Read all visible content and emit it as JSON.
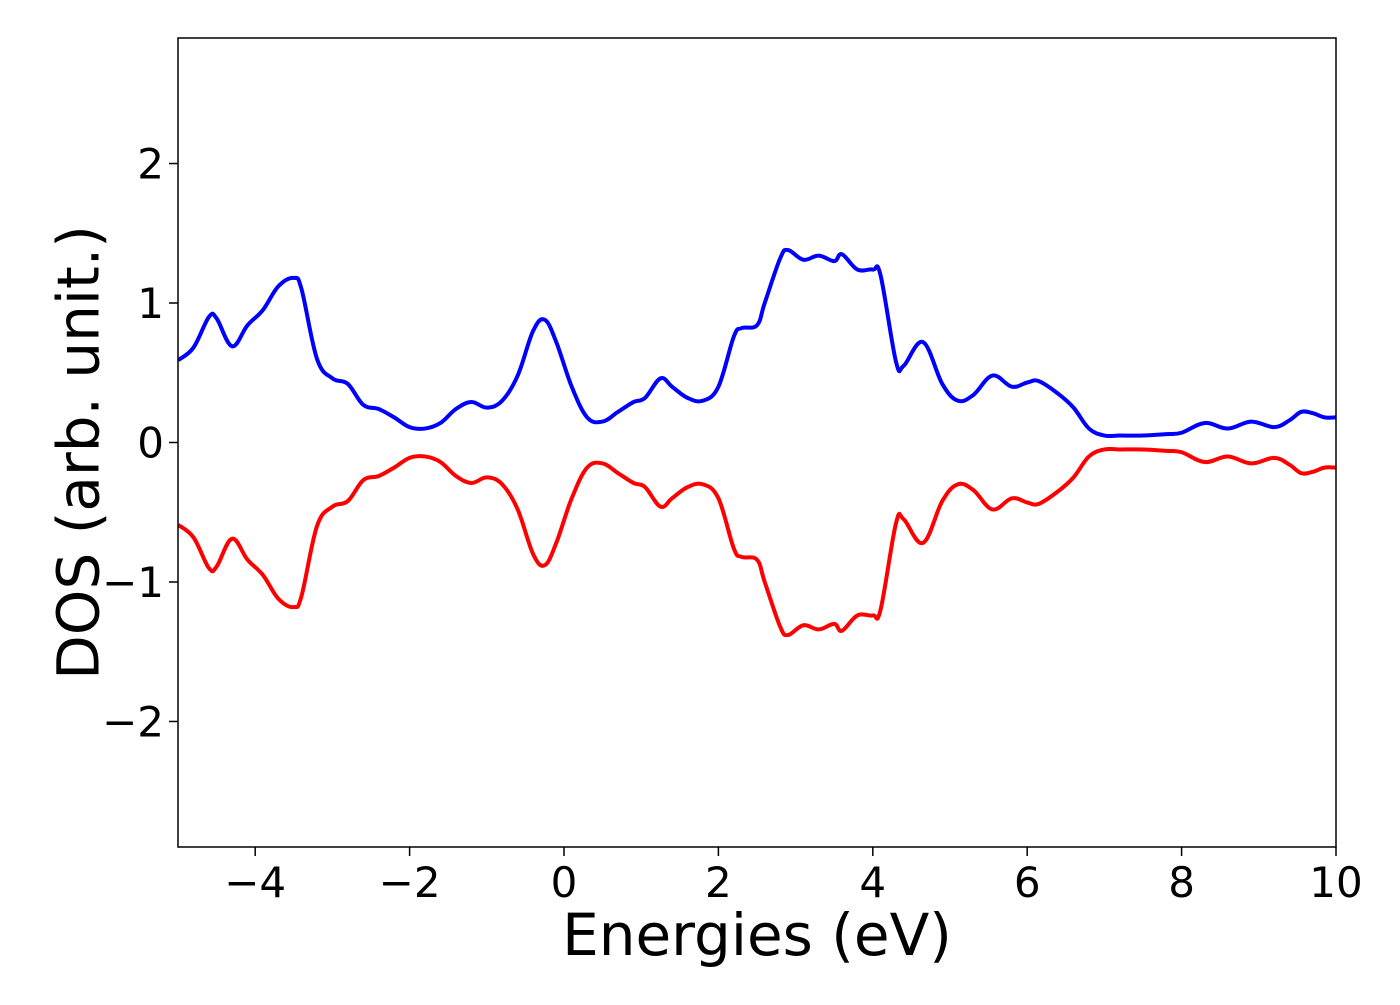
{
  "chart_data": {
    "type": "line",
    "title": "",
    "xlabel": "Energies (eV)",
    "ylabel": "DOS (arb. unit.)",
    "xlim": [
      -5,
      10
    ],
    "ylim": [
      -2.9,
      2.9
    ],
    "xticks": [
      -4,
      -2,
      0,
      2,
      4,
      6,
      8,
      10
    ],
    "xtick_labels": [
      "−4",
      "−2",
      "0",
      "2",
      "4",
      "6",
      "8",
      "10"
    ],
    "yticks": [
      -2,
      -1,
      0,
      1,
      2
    ],
    "ytick_labels": [
      "−2",
      "−1",
      "0",
      "1",
      "2"
    ],
    "grid": false,
    "legend": "none",
    "series": [
      {
        "color": "#0000ff",
        "x": [
          -5.0,
          -4.8,
          -4.6,
          -4.5,
          -4.3,
          -4.1,
          -3.9,
          -3.7,
          -3.5,
          -3.4,
          -3.2,
          -3.0,
          -2.8,
          -2.6,
          -2.4,
          -2.2,
          -2.0,
          -1.8,
          -1.6,
          -1.4,
          -1.2,
          -1.0,
          -0.8,
          -0.6,
          -0.4,
          -0.25,
          -0.1,
          0.1,
          0.3,
          0.5,
          0.7,
          0.9,
          1.05,
          1.25,
          1.4,
          1.6,
          1.8,
          2.0,
          2.2,
          2.3,
          2.5,
          2.6,
          2.8,
          2.9,
          3.1,
          3.3,
          3.5,
          3.6,
          3.8,
          4.0,
          4.1,
          4.3,
          4.4,
          4.65,
          4.9,
          5.1,
          5.3,
          5.55,
          5.8,
          6.0,
          6.15,
          6.4,
          6.6,
          6.8,
          7.0,
          7.2,
          7.5,
          7.8,
          8.0,
          8.3,
          8.6,
          8.9,
          9.2,
          9.4,
          9.55,
          9.7,
          9.85,
          10.0
        ],
        "y": [
          0.59,
          0.68,
          0.9,
          0.89,
          0.69,
          0.84,
          0.95,
          1.12,
          1.18,
          1.1,
          0.6,
          0.46,
          0.42,
          0.27,
          0.24,
          0.18,
          0.11,
          0.1,
          0.14,
          0.24,
          0.29,
          0.25,
          0.3,
          0.48,
          0.8,
          0.88,
          0.72,
          0.4,
          0.18,
          0.15,
          0.22,
          0.29,
          0.32,
          0.46,
          0.4,
          0.32,
          0.3,
          0.4,
          0.76,
          0.82,
          0.84,
          1.0,
          1.32,
          1.38,
          1.31,
          1.34,
          1.3,
          1.35,
          1.24,
          1.24,
          1.2,
          0.58,
          0.55,
          0.72,
          0.42,
          0.3,
          0.34,
          0.48,
          0.4,
          0.43,
          0.44,
          0.35,
          0.25,
          0.1,
          0.05,
          0.05,
          0.05,
          0.06,
          0.07,
          0.14,
          0.1,
          0.15,
          0.11,
          0.16,
          0.22,
          0.21,
          0.18,
          0.18
        ]
      },
      {
        "color": "#ff0000",
        "x": [
          -5.0,
          -4.8,
          -4.6,
          -4.5,
          -4.3,
          -4.1,
          -3.9,
          -3.7,
          -3.5,
          -3.4,
          -3.2,
          -3.0,
          -2.8,
          -2.6,
          -2.4,
          -2.2,
          -2.0,
          -1.8,
          -1.6,
          -1.4,
          -1.2,
          -1.0,
          -0.8,
          -0.6,
          -0.4,
          -0.25,
          -0.1,
          0.1,
          0.3,
          0.5,
          0.7,
          0.9,
          1.05,
          1.25,
          1.4,
          1.6,
          1.8,
          2.0,
          2.2,
          2.3,
          2.5,
          2.6,
          2.8,
          2.9,
          3.1,
          3.3,
          3.5,
          3.6,
          3.8,
          4.0,
          4.1,
          4.3,
          4.4,
          4.65,
          4.9,
          5.1,
          5.3,
          5.55,
          5.8,
          6.0,
          6.15,
          6.4,
          6.6,
          6.8,
          7.0,
          7.2,
          7.5,
          7.8,
          8.0,
          8.3,
          8.6,
          8.9,
          9.2,
          9.4,
          9.55,
          9.7,
          9.85,
          10.0
        ],
        "y": [
          -0.59,
          -0.68,
          -0.9,
          -0.89,
          -0.69,
          -0.84,
          -0.95,
          -1.12,
          -1.18,
          -1.1,
          -0.6,
          -0.46,
          -0.42,
          -0.27,
          -0.24,
          -0.18,
          -0.11,
          -0.1,
          -0.14,
          -0.24,
          -0.29,
          -0.25,
          -0.3,
          -0.48,
          -0.8,
          -0.88,
          -0.72,
          -0.4,
          -0.18,
          -0.15,
          -0.22,
          -0.29,
          -0.32,
          -0.46,
          -0.4,
          -0.32,
          -0.3,
          -0.4,
          -0.76,
          -0.82,
          -0.84,
          -1.0,
          -1.32,
          -1.38,
          -1.31,
          -1.34,
          -1.3,
          -1.35,
          -1.24,
          -1.24,
          -1.2,
          -0.58,
          -0.55,
          -0.72,
          -0.42,
          -0.3,
          -0.34,
          -0.48,
          -0.4,
          -0.43,
          -0.44,
          -0.35,
          -0.25,
          -0.1,
          -0.05,
          -0.05,
          -0.05,
          -0.06,
          -0.07,
          -0.14,
          -0.1,
          -0.15,
          -0.11,
          -0.16,
          -0.22,
          -0.21,
          -0.18,
          -0.18
        ]
      }
    ]
  }
}
